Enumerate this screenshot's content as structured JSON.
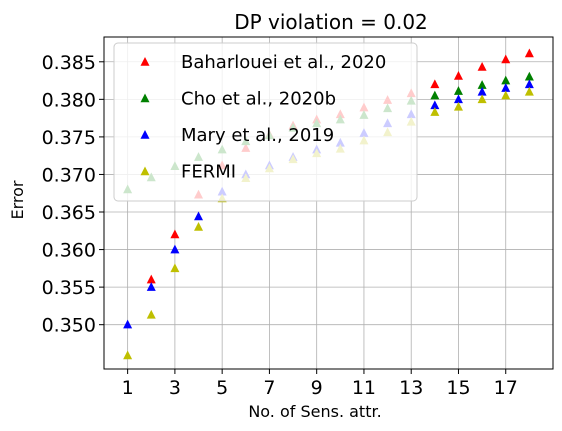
{
  "chart_data": {
    "type": "scatter",
    "title": "DP violation = 0.02",
    "xlabel": "No. of Sens. attr.",
    "ylabel": "Error",
    "xlim": [
      0,
      19
    ],
    "ylim": [
      0.3441,
      0.3883
    ],
    "xticks": [
      1,
      3,
      5,
      7,
      9,
      11,
      13,
      15,
      17
    ],
    "xtick_labels": [
      "1",
      "3",
      "5",
      "7",
      "9",
      "11",
      "13",
      "15",
      "17"
    ],
    "yticks": [
      0.35,
      0.355,
      0.36,
      0.365,
      0.37,
      0.375,
      0.38,
      0.385
    ],
    "ytick_labels": [
      "0.350",
      "0.355",
      "0.360",
      "0.365",
      "0.370",
      "0.375",
      "0.380",
      "0.385"
    ],
    "grid": true,
    "legend_position": "top-left",
    "x": [
      1,
      2,
      3,
      4,
      5,
      6,
      7,
      8,
      9,
      10,
      11,
      12,
      13,
      14,
      15,
      16,
      17,
      18
    ],
    "series": [
      {
        "name": "Baharlouei et al., 2020",
        "color": "#ff0000",
        "marker": "triangle",
        "values": [
          null,
          0.356,
          0.362,
          0.3673,
          0.3712,
          0.3735,
          0.3753,
          0.3765,
          0.3773,
          0.378,
          0.3789,
          0.3799,
          0.3808,
          0.382,
          0.3831,
          0.3843,
          0.3853,
          0.3861
        ]
      },
      {
        "name": "Cho et al., 2020b",
        "color": "#008000",
        "marker": "triangle",
        "values": [
          0.368,
          0.3696,
          0.3711,
          0.3723,
          0.3733,
          0.3744,
          0.3752,
          0.3762,
          0.3768,
          0.3773,
          0.3779,
          0.3788,
          0.3798,
          0.3805,
          0.3811,
          0.3819,
          0.3825,
          0.383
        ]
      },
      {
        "name": "Mary et al., 2019",
        "color": "#0000ff",
        "marker": "triangle",
        "values": [
          0.35,
          0.355,
          0.36,
          0.3644,
          0.3677,
          0.37,
          0.3712,
          0.3723,
          0.3733,
          0.3742,
          0.3755,
          0.3768,
          0.378,
          0.3792,
          0.38,
          0.381,
          0.3815,
          0.382
        ]
      },
      {
        "name": "FERMI",
        "color": "#bfbf00",
        "marker": "triangle",
        "values": [
          0.3459,
          0.3513,
          0.3575,
          0.363,
          0.3668,
          0.3695,
          0.3708,
          0.372,
          0.3728,
          0.3734,
          0.3745,
          0.3756,
          0.377,
          0.3783,
          0.379,
          0.38,
          0.3805,
          0.381
        ]
      }
    ]
  }
}
